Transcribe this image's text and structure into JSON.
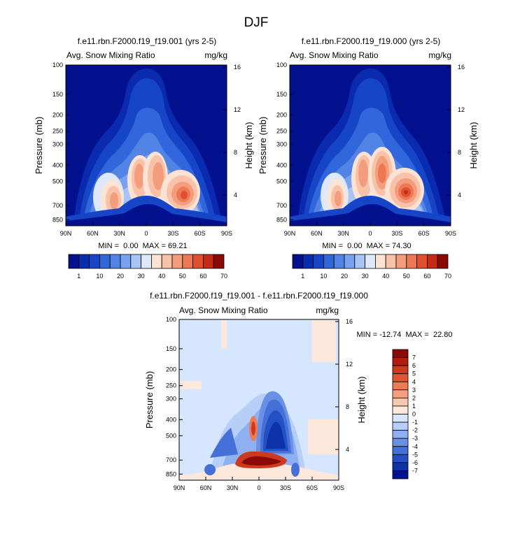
{
  "figure": {
    "title": "DJF"
  },
  "colors": {
    "background": "#ffffff",
    "frame": "#000000",
    "fill_main_top": "#03118f",
    "fill_diff": "#d6e6ff"
  },
  "chart_data": [
    {
      "type": "heatmap",
      "id": "panel_a",
      "title": "f.e11.rbn.F2000.f19_f19.001 (yrs 2-5)",
      "subtitle_left": "Avg. Snow Mixing Ratio",
      "subtitle_right": "mg/kg",
      "xlabel": "",
      "ylabel": "Pressure (mb)",
      "ylabel_right": "Height (km)",
      "x_ticks": [
        "90N",
        "60N",
        "30N",
        "0",
        "30S",
        "60S",
        "90S"
      ],
      "x_values": [
        90,
        60,
        30,
        0,
        -30,
        -60,
        -90
      ],
      "y_ticks": [
        "100",
        "150",
        "200",
        "250",
        "300",
        "400",
        "500",
        "700",
        "850"
      ],
      "y_values": [
        100,
        150,
        200,
        250,
        300,
        400,
        500,
        700,
        850
      ],
      "y_right_ticks": [
        "16",
        "12",
        "8",
        "4"
      ],
      "y_right_values": [
        16,
        12,
        8,
        4
      ],
      "stats": "MIN =  0.00  MAX = 69.21",
      "min": 0.0,
      "max": 69.21,
      "colorbar": {
        "labels": [
          "1",
          "10",
          "20",
          "30",
          "40",
          "50",
          "60",
          "70"
        ],
        "colors": [
          "#03118f",
          "#0a2ab0",
          "#1745c8",
          "#3266dc",
          "#5284e6",
          "#78a2f0",
          "#a8c4f6",
          "#dde8fa",
          "#fde3d4",
          "#f8c2a8",
          "#f49d7c",
          "#ee7754",
          "#e0502e",
          "#c42a16",
          "#8c0a06"
        ]
      }
    },
    {
      "type": "heatmap",
      "id": "panel_b",
      "title": "f.e11.rbn.F2000.f19_f19.000 (yrs 2-5)",
      "subtitle_left": "Avg. Snow Mixing Ratio",
      "subtitle_right": "mg/kg",
      "xlabel": "",
      "ylabel": "Pressure (mb)",
      "ylabel_right": "Height (km)",
      "x_ticks": [
        "90N",
        "60N",
        "30N",
        "0",
        "30S",
        "60S",
        "90S"
      ],
      "x_values": [
        90,
        60,
        30,
        0,
        -30,
        -60,
        -90
      ],
      "y_ticks": [
        "100",
        "150",
        "200",
        "250",
        "300",
        "400",
        "500",
        "700",
        "850"
      ],
      "y_values": [
        100,
        150,
        200,
        250,
        300,
        400,
        500,
        700,
        850
      ],
      "y_right_ticks": [
        "16",
        "12",
        "8",
        "4"
      ],
      "y_right_values": [
        16,
        12,
        8,
        4
      ],
      "stats": "MIN =  0.00  MAX = 74.30",
      "min": 0.0,
      "max": 74.3,
      "colorbar": {
        "labels": [
          "1",
          "10",
          "20",
          "30",
          "40",
          "50",
          "60",
          "70"
        ],
        "colors": [
          "#03118f",
          "#0a2ab0",
          "#1745c8",
          "#3266dc",
          "#5284e6",
          "#78a2f0",
          "#a8c4f6",
          "#dde8fa",
          "#fde3d4",
          "#f8c2a8",
          "#f49d7c",
          "#ee7754",
          "#e0502e",
          "#c42a16",
          "#8c0a06"
        ]
      }
    },
    {
      "type": "heatmap",
      "id": "panel_diff",
      "title": "f.e11.rbn.F2000.f19_f19.001 - f.e11.rbn.F2000.f19_f19.000",
      "subtitle_left": "Avg. Snow Mixing Ratio",
      "subtitle_right": "mg/kg",
      "xlabel": "",
      "ylabel": "Pressure (mb)",
      "ylabel_right": "Height (km)",
      "x_ticks": [
        "90N",
        "60N",
        "30N",
        "0",
        "30S",
        "60S",
        "90S"
      ],
      "x_values": [
        90,
        60,
        30,
        0,
        -30,
        -60,
        -90
      ],
      "y_ticks": [
        "100",
        "150",
        "200",
        "250",
        "300",
        "400",
        "500",
        "700",
        "850"
      ],
      "y_values": [
        100,
        150,
        200,
        250,
        300,
        400,
        500,
        700,
        850
      ],
      "y_right_ticks": [
        "16",
        "12",
        "8",
        "4"
      ],
      "y_right_values": [
        16,
        12,
        8,
        4
      ],
      "stats": "MIN = -12.74  MAX =  22.80",
      "min": -12.74,
      "max": 22.8,
      "colorbar": {
        "labels": [
          "7",
          "6",
          "5",
          "4",
          "3",
          "2",
          "1",
          "0",
          "-1",
          "-2",
          "-3",
          "-4",
          "-5",
          "-6",
          "-7"
        ],
        "colors": [
          "#8c0a06",
          "#b01e0e",
          "#cc3a20",
          "#e05634",
          "#ec7a56",
          "#f4a07e",
          "#f9c7ae",
          "#fde8dc",
          "#d6e6ff",
          "#b6cef8",
          "#8eb0f0",
          "#6a90e6",
          "#4470d8",
          "#2450c4",
          "#0c34a8",
          "#03118f"
        ]
      }
    }
  ]
}
